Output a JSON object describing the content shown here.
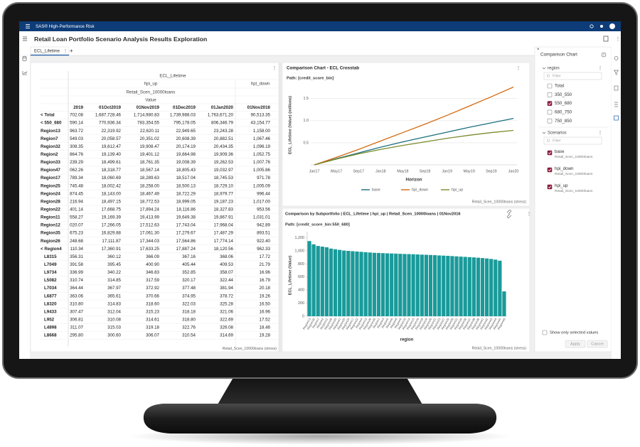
{
  "app_bar": {
    "product": "SAS® High-Performance Risk"
  },
  "header": {
    "title": "Retail Loan Portfolio Scenario Analysis Results Exploration"
  },
  "tabs": [
    "ECL_Lifetime"
  ],
  "crosstab": {
    "measure": "ECL_Lifetime",
    "scenarios": [
      "hpi_up",
      "hpi_down"
    ],
    "portfolio": "Retail_Scen_10000loans",
    "value_label": "Value",
    "columns": [
      "2019",
      "01Oct2019",
      "01Nov2019",
      "01Dec2019",
      "01Jan2020",
      "01Nov2016"
    ],
    "rows": [
      [
        "< Total",
        "702.08",
        "1,687,728.46",
        "1,714,980.83",
        "1,739,988.03",
        "1,763,671.20",
        "90,513.35"
      ],
      [
        "< 550_680",
        "590.14",
        "770,936.34",
        "783,354.55",
        "795,178.05",
        "806,346.79",
        "43,154.77"
      ],
      [
        "Region13",
        "963.72",
        "22,319.92",
        "22,620.11",
        "22,949.65",
        "23,243.28",
        "1,158.00"
      ],
      [
        "Region7",
        "549.03",
        "20,058.57",
        "20,351.02",
        "20,608.39",
        "20,882.51",
        "1,067.46"
      ],
      [
        "Region32",
        "308.35",
        "19,612.47",
        "19,908.47",
        "20,174.19",
        "20,434.35",
        "1,096.19"
      ],
      [
        "Region2",
        "864.76",
        "19,139.40",
        "19,401.12",
        "19,664.98",
        "19,909.36",
        "1,052.75"
      ],
      [
        "Region33",
        "239.29",
        "18,499.61",
        "18,761.35",
        "19,008.39",
        "19,262.53",
        "1,007.76"
      ],
      [
        "Region47",
        "062.26",
        "18,318.77",
        "18,567.14",
        "18,805.43",
        "19,032.97",
        "1,005.86"
      ],
      [
        "Region17",
        "789.34",
        "18,060.69",
        "18,289.63",
        "18,517.04",
        "18,745.53",
        "971.78"
      ],
      [
        "Region25",
        "745.48",
        "18,002.42",
        "18,258.00",
        "18,500.13",
        "18,729.10",
        "1,005.09"
      ],
      [
        "Region24",
        "874.45",
        "18,143.00",
        "18,467.49",
        "18,722.29",
        "18,979.77",
        "996.44"
      ],
      [
        "Region28",
        "216.94",
        "18,497.15",
        "18,772.53",
        "18,999.05",
        "19,187.23",
        "1,017.00"
      ],
      [
        "Region22",
        "401.14",
        "17,668.75",
        "17,894.24",
        "18,116.86",
        "18,327.83",
        "953.56"
      ],
      [
        "Region11",
        "558.27",
        "19,169.39",
        "19,413.99",
        "19,649.38",
        "19,867.91",
        "1,031.01"
      ],
      [
        "Region12",
        "020.07",
        "17,266.05",
        "17,512.63",
        "17,743.04",
        "17,968.04",
        "942.89"
      ],
      [
        "Region35",
        "675.23",
        "16,829.88",
        "17,061.30",
        "17,279.67",
        "17,487.29",
        "893.51"
      ],
      [
        "Region26",
        "248.68",
        "17,111.87",
        "17,344.03",
        "17,564.86",
        "17,774.14",
        "922.40"
      ],
      [
        "< Region4",
        "110.34",
        "17,360.91",
        "17,633.25",
        "17,887.24",
        "18,120.56",
        "962.33"
      ],
      [
        "L8315",
        "356.31",
        "360.12",
        "366.09",
        "367.16",
        "368.06",
        "17.72"
      ],
      [
        "L7049",
        "391.58",
        "395.45",
        "400.90",
        "405.44",
        "409.53",
        "21.79"
      ],
      [
        "L9734",
        "336.99",
        "340.22",
        "346.83",
        "352.85",
        "358.07",
        "16.96"
      ],
      [
        "L5082",
        "310.74",
        "314.85",
        "317.59",
        "320.17",
        "322.44",
        "16.79"
      ],
      [
        "L7034",
        "364.44",
        "367.97",
        "372.92",
        "377.48",
        "381.94",
        "20.18"
      ],
      [
        "L6877",
        "363.06",
        "365.61",
        "370.66",
        "374.95",
        "378.72",
        "19.26"
      ],
      [
        "L8320",
        "310.80",
        "314.83",
        "318.60",
        "322.03",
        "325.28",
        "16.50"
      ],
      [
        "L9433",
        "307.47",
        "312.04",
        "315.23",
        "318.18",
        "321.06",
        "16.96"
      ],
      [
        "L952",
        "306.81",
        "310.08",
        "314.61",
        "318.80",
        "322.69",
        "17.52"
      ],
      [
        "L4898",
        "311.07",
        "315.03",
        "319.18",
        "322.76",
        "326.08",
        "18.46"
      ],
      [
        "L8668",
        "295.80",
        "300.60",
        "306.07",
        "310.54",
        "314.69",
        "19.28"
      ]
    ],
    "footnote": "Retail_Scen_10000loans (stress)"
  },
  "chart_data": [
    {
      "type": "line",
      "title": "Comparison Chart - ECL Crosstab",
      "subtitle": "Path: [credit_score_bin]",
      "x_label": "Horizon",
      "y_label": "ECL_Lifetime (Value) (millions)",
      "footnote": "Retail_Scen_10000loans (stress)",
      "categories": [
        "Jan17",
        "May17",
        "Sep17",
        "Jan18",
        "May18",
        "Sep18",
        "Jan19",
        "May19",
        "Sep19",
        "Jan20"
      ],
      "series": [
        {
          "name": "base",
          "color": "#1b6f7e",
          "values": [
            0,
            0.14,
            0.27,
            0.4,
            0.52,
            0.63,
            0.74,
            0.85,
            0.95,
            1.05
          ]
        },
        {
          "name": "hpi_down",
          "color": "#d4690f",
          "values": [
            0,
            0.17,
            0.35,
            0.54,
            0.73,
            0.92,
            1.12,
            1.33,
            1.54,
            1.76
          ]
        },
        {
          "name": "hpi_up",
          "color": "#7a8b2c",
          "values": [
            0,
            0.13,
            0.25,
            0.35,
            0.44,
            0.52,
            0.6,
            0.67,
            0.73,
            0.78
          ]
        }
      ],
      "ylim": [
        0,
        1.8
      ],
      "yticks": [
        0.5,
        {
          "value": 1,
          "label": "1.0"
        },
        1.5
      ],
      "grid": true
    },
    {
      "type": "bar",
      "title": "Comparison by Subportfolio | ECL_Lifetime | hpi_up | Retail_Scen_10000loans | 01Nov2016",
      "subtitle": "Path: [credit_score_bin:550_680]",
      "x_label": "region",
      "y_label": "ECL_Lifetime (Value)",
      "footnote": "Retail_Scen_10000loans (stress)",
      "categories": [
        "Region13",
        "Region32",
        "Region7",
        "Region2",
        "Region11",
        "Region28",
        "Region33",
        "Region47",
        "Region25",
        "Region24",
        "Region17",
        "Region22",
        "Region4",
        "Region12",
        "Region26",
        "Region35",
        "Region1",
        "Region3",
        "Region5",
        "Region6",
        "Region8",
        "Region9",
        "Region10",
        "Region14",
        "Region15",
        "Region16",
        "Region18",
        "Region19",
        "Region20",
        "Region21",
        "Region23",
        "Region27",
        "Region29",
        "Region30",
        "Region31",
        "Region34",
        "Region36",
        "Region37",
        "Region38",
        "Region39",
        "Region41",
        "Region42",
        "Region43",
        "Region44",
        "Region45",
        "Region40"
      ],
      "values": [
        1150,
        1100,
        1075,
        1065,
        1055,
        1035,
        1025,
        1015,
        1005,
        1000,
        995,
        990,
        985,
        980,
        975,
        970,
        968,
        965,
        962,
        960,
        958,
        955,
        952,
        950,
        948,
        945,
        942,
        940,
        937,
        934,
        930,
        927,
        924,
        920,
        916,
        912,
        908,
        904,
        900,
        895,
        890,
        884,
        876,
        866,
        850,
        380
      ],
      "color": "#1a9a9a",
      "ylim": [
        0,
        1250
      ],
      "yticks": [
        0,
        200,
        400,
        600,
        800,
        {
          "value": 1000,
          "label": "1,000"
        },
        {
          "value": 1200,
          "label": "1,200"
        }
      ],
      "grid": false
    }
  ],
  "filter_panel": {
    "title": "Comparison Chart",
    "sections": [
      {
        "name": "region",
        "filter_placeholder": "Filter",
        "options": [
          {
            "label": "Total",
            "checked": false
          },
          {
            "label": "350_550",
            "checked": false
          },
          {
            "label": "550_680",
            "checked": true
          },
          {
            "label": "680_750",
            "checked": false
          },
          {
            "label": "750_850",
            "checked": false
          }
        ]
      },
      {
        "name": "Scenarios",
        "filter_placeholder": "Filter",
        "options": [
          {
            "label": "base",
            "detail": "Retail_Scen_10000loans",
            "checked": true
          },
          {
            "label": "hpi_down",
            "detail": "Retail_Scen_10000loans",
            "checked": true
          },
          {
            "label": "hpi_up",
            "detail": "Retail_Scen_10000loans",
            "checked": true
          }
        ]
      }
    ],
    "show_selected_label": "Show only selected values",
    "buttons": [
      "Apply",
      "Cancel"
    ]
  }
}
